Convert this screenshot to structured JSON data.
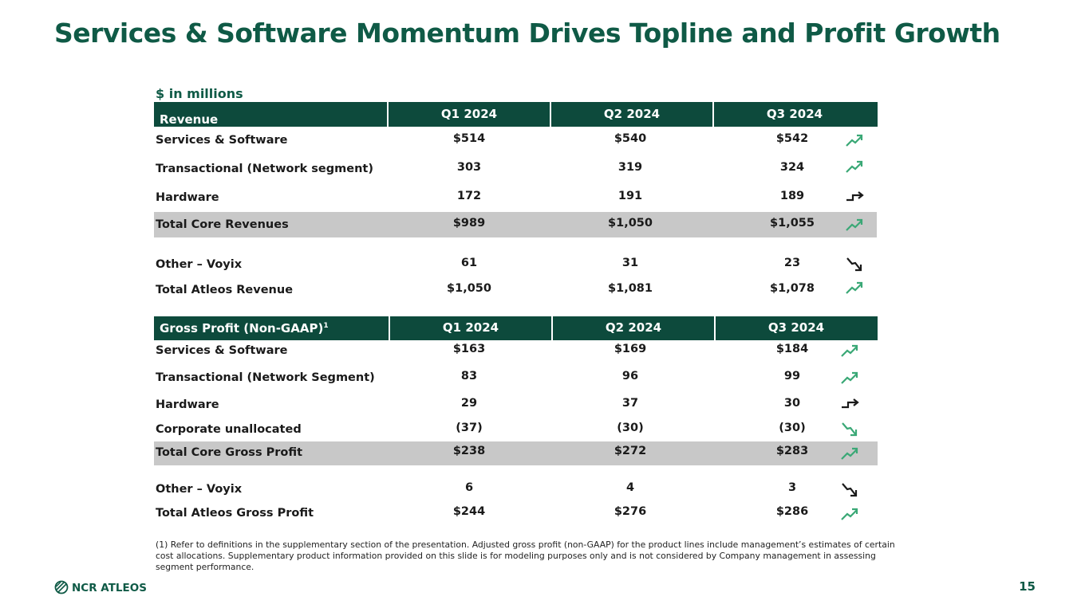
{
  "title": "Services & Software Momentum Drives Topline and Profit Growth",
  "units_label": "$ in millions",
  "colors": {
    "brand_green": "#0f5a46",
    "header_bg": "#0d4a3c",
    "trend_up": "#3aa876",
    "trend_down": "#1a1a1a",
    "shaded_row": "#c8c8c8"
  },
  "revenue": {
    "header": {
      "label": "Revenue",
      "q1": "Q1 2024",
      "q2": "Q2 2024",
      "q3": "Q3 2024"
    },
    "rows": [
      {
        "name": "Services & Software",
        "q1": "$514",
        "q2": "$540",
        "q3": "$542",
        "trend": "trend-up-icon"
      },
      {
        "name": "Transactional (Network segment)",
        "q1": "303",
        "q2": "319",
        "q3": "324",
        "trend": "trend-up-icon"
      },
      {
        "name": "Hardware",
        "q1": "172",
        "q2": "191",
        "q3": "189",
        "trend": "trend-flat-icon"
      },
      {
        "name": "Total Core Revenues",
        "q1": "$989",
        "q2": "$1,050",
        "q3": "$1,055",
        "trend": "trend-up-icon"
      },
      {
        "name": "Other – Voyix",
        "q1": "61",
        "q2": "31",
        "q3": "23",
        "trend": "trend-down-icon"
      },
      {
        "name": "Total Atleos Revenue",
        "q1": "$1,050",
        "q2": "$1,081",
        "q3": "$1,078",
        "trend": "trend-up-icon"
      }
    ]
  },
  "gross_profit": {
    "header": {
      "label": "Gross Profit (Non-GAAP)",
      "sup": "1",
      "q1": "Q1 2024",
      "q2": "Q2 2024",
      "q3": "Q3 2024"
    },
    "rows": [
      {
        "name": "Services & Software",
        "q1": "$163",
        "q2": "$169",
        "q3": "$184",
        "trend": "trend-up-icon"
      },
      {
        "name": "Transactional (Network Segment)",
        "q1": "83",
        "q2": "96",
        "q3": "99",
        "trend": "trend-up-icon"
      },
      {
        "name": "Hardware",
        "q1": "29",
        "q2": "37",
        "q3": "30",
        "trend": "trend-flat-icon"
      },
      {
        "name": "Corporate unallocated",
        "q1": "(37)",
        "q2": "(30)",
        "q3": "(30)",
        "trend": "trend-down-green-icon"
      },
      {
        "name": "Total Core Gross Profit",
        "q1": "$238",
        "q2": "$272",
        "q3": "$283",
        "trend": "trend-up-icon"
      },
      {
        "name": "Other – Voyix",
        "q1": "6",
        "q2": "4",
        "q3": "3",
        "trend": "trend-down-icon"
      },
      {
        "name": "Total Atleos Gross Profit",
        "q1": "$244",
        "q2": "$276",
        "q3": "$286",
        "trend": "trend-up-icon"
      }
    ]
  },
  "footnote": "(1) Refer to definitions in the supplementary section of the presentation. Adjusted gross profit (non-GAAP) for the product lines include management’s estimates of certain cost allocations. Supplementary product information provided on this slide is for modeling purposes only and is not considered by Company management in assessing segment performance.",
  "logo_text": "NCR ATLEOS",
  "page_number": "15"
}
